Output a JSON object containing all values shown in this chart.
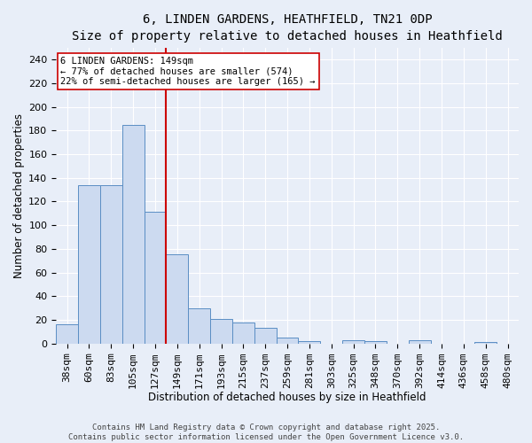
{
  "title1": "6, LINDEN GARDENS, HEATHFIELD, TN21 0DP",
  "title2": "Size of property relative to detached houses in Heathfield",
  "xlabel": "Distribution of detached houses by size in Heathfield",
  "ylabel": "Number of detached properties",
  "bar_labels": [
    "38sqm",
    "60sqm",
    "83sqm",
    "105sqm",
    "127sqm",
    "149sqm",
    "171sqm",
    "193sqm",
    "215sqm",
    "237sqm",
    "259sqm",
    "281sqm",
    "303sqm",
    "325sqm",
    "348sqm",
    "370sqm",
    "392sqm",
    "414sqm",
    "436sqm",
    "458sqm",
    "480sqm"
  ],
  "bar_values": [
    16,
    134,
    134,
    185,
    111,
    75,
    30,
    21,
    18,
    13,
    5,
    2,
    0,
    3,
    2,
    0,
    3,
    0,
    0,
    1,
    0
  ],
  "bar_color": "#ccdaf0",
  "bar_edge_color": "#5b8ec4",
  "vline_color": "#cc0000",
  "vline_index": 5,
  "annotation_title": "6 LINDEN GARDENS: 149sqm",
  "annotation_line1": "← 77% of detached houses are smaller (574)",
  "annotation_line2": "22% of semi-detached houses are larger (165) →",
  "annotation_box_facecolor": "#ffffff",
  "annotation_box_edgecolor": "#cc0000",
  "ylim": [
    0,
    250
  ],
  "yticks": [
    0,
    20,
    40,
    60,
    80,
    100,
    120,
    140,
    160,
    180,
    200,
    220,
    240
  ],
  "footer1": "Contains HM Land Registry data © Crown copyright and database right 2025.",
  "footer2": "Contains public sector information licensed under the Open Government Licence v3.0.",
  "bg_color": "#e8eef8",
  "plot_bg_color": "#e8eef8",
  "title_fontsize": 10,
  "subtitle_fontsize": 9,
  "axis_label_fontsize": 8.5,
  "tick_fontsize": 8,
  "footer_fontsize": 6.5
}
